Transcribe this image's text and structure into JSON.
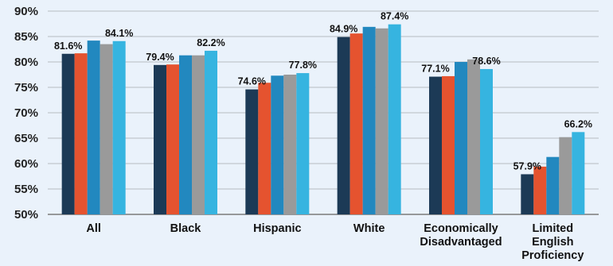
{
  "chart_data": {
    "type": "bar",
    "title": "",
    "xlabel": "",
    "ylabel": "",
    "ylim": [
      50,
      90
    ],
    "yticks": [
      {
        "value": 50,
        "label": "50%"
      },
      {
        "value": 55,
        "label": "55%"
      },
      {
        "value": 60,
        "label": "60%"
      },
      {
        "value": 65,
        "label": "65%"
      },
      {
        "value": 70,
        "label": "70%"
      },
      {
        "value": 75,
        "label": "75%"
      },
      {
        "value": 80,
        "label": "80%"
      },
      {
        "value": 85,
        "label": "85%"
      },
      {
        "value": 90,
        "label": "90%"
      }
    ],
    "grid": true,
    "legend": "none",
    "categories": [
      {
        "label": [
          "All"
        ]
      },
      {
        "label": [
          "Black"
        ]
      },
      {
        "label": [
          "Hispanic"
        ]
      },
      {
        "label": [
          "White"
        ]
      },
      {
        "label": [
          "Economically",
          "Disadvantaged"
        ]
      },
      {
        "label": [
          "Limited",
          "English",
          "Proficiency"
        ]
      }
    ],
    "series": [
      {
        "color": "#1c3a56",
        "values": [
          81.6,
          79.4,
          74.6,
          84.9,
          77.1,
          57.9
        ],
        "labels": [
          "81.6%",
          "79.4%",
          "74.6%",
          "84.9%",
          "77.1%",
          "57.9%"
        ]
      },
      {
        "color": "#e5532f",
        "values": [
          81.7,
          79.5,
          75.9,
          85.6,
          77.2,
          59.4
        ],
        "labels": [
          "",
          "",
          "",
          "",
          "",
          ""
        ]
      },
      {
        "color": "#2288bf",
        "values": [
          84.2,
          81.3,
          77.3,
          86.9,
          80.0,
          61.3
        ],
        "labels": [
          "",
          "",
          "",
          "",
          "",
          ""
        ]
      },
      {
        "color": "#9a9a9a",
        "values": [
          83.5,
          81.3,
          77.5,
          86.6,
          80.5,
          65.2
        ],
        "labels": [
          "",
          "",
          "",
          "",
          "",
          ""
        ]
      },
      {
        "color": "#36b4e0",
        "values": [
          84.1,
          82.2,
          77.8,
          87.4,
          78.6,
          66.2
        ],
        "labels": [
          "84.1%",
          "82.2%",
          "77.8%",
          "87.4%",
          "78.6%",
          "66.2%"
        ]
      }
    ]
  }
}
